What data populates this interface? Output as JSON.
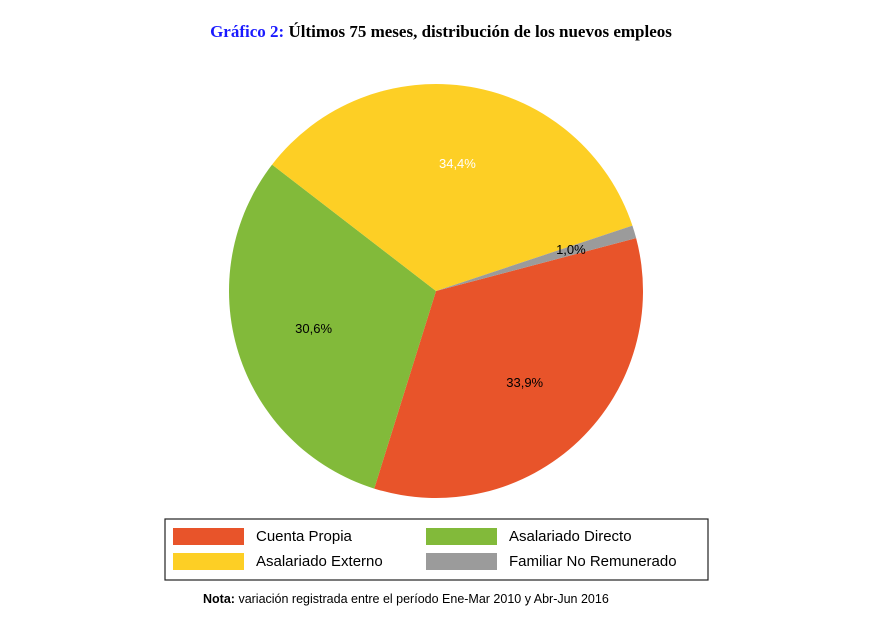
{
  "chart_data": {
    "type": "pie",
    "title_label": "Gráfico 2:",
    "title": "Últimos 75 meses, distribución de los nuevos empleos",
    "categories": [
      "Cuenta Propia",
      "Asalariado Directo",
      "Asalariado Externo",
      "Familiar No Remunerado"
    ],
    "values": [
      33.9,
      30.6,
      34.4,
      1.0
    ],
    "value_labels": [
      "33,9%",
      "30,6%",
      "34,4%",
      "1,0%"
    ],
    "colors": [
      "#e8542a",
      "#82ba3a",
      "#fdcf25",
      "#9b9b9b"
    ],
    "label_colors": [
      "#000000",
      "#000000",
      "#ffffff",
      "#000000"
    ],
    "note_label": "Nota:",
    "note": "variación registrada entre el período Ene-Mar 2010 y Abr-Jun 2016"
  }
}
